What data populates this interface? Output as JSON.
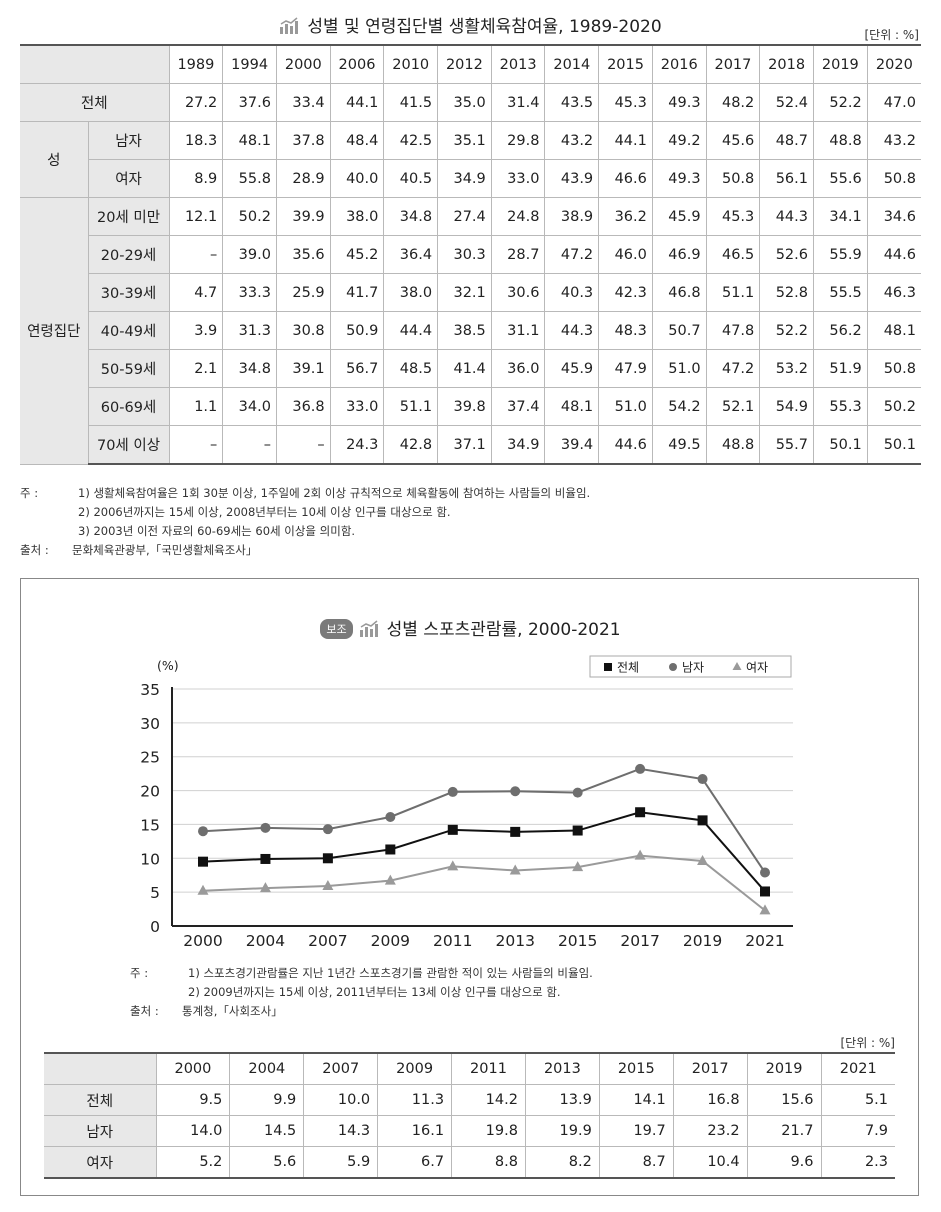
{
  "main_table": {
    "title": "성별 및 연령집단별 생활체육참여율, 1989-2020",
    "unit": "[단위 : %]",
    "years": [
      "1989",
      "1994",
      "2000",
      "2006",
      "2010",
      "2012",
      "2013",
      "2014",
      "2015",
      "2016",
      "2017",
      "2018",
      "2019",
      "2020"
    ],
    "group_sex": "성",
    "group_age": "연령집단",
    "rows": [
      {
        "label": "전체",
        "values": [
          "27.2",
          "37.6",
          "33.4",
          "44.1",
          "41.5",
          "35.0",
          "31.4",
          "43.5",
          "45.3",
          "49.3",
          "48.2",
          "52.4",
          "52.2",
          "47.0"
        ]
      },
      {
        "label": "남자",
        "values": [
          "18.3",
          "48.1",
          "37.8",
          "48.4",
          "42.5",
          "35.1",
          "29.8",
          "43.2",
          "44.1",
          "49.2",
          "45.6",
          "48.7",
          "48.8",
          "43.2"
        ]
      },
      {
        "label": "여자",
        "values": [
          "8.9",
          "55.8",
          "28.9",
          "40.0",
          "40.5",
          "34.9",
          "33.0",
          "43.9",
          "46.6",
          "49.3",
          "50.8",
          "56.1",
          "55.6",
          "50.8"
        ]
      },
      {
        "label": "20세 미만",
        "values": [
          "12.1",
          "50.2",
          "39.9",
          "38.0",
          "34.8",
          "27.4",
          "24.8",
          "38.9",
          "36.2",
          "45.9",
          "45.3",
          "44.3",
          "34.1",
          "34.6"
        ]
      },
      {
        "label": "20-29세",
        "values": [
          "–",
          "39.0",
          "35.6",
          "45.2",
          "36.4",
          "30.3",
          "28.7",
          "47.2",
          "46.0",
          "46.9",
          "46.5",
          "52.6",
          "55.9",
          "44.6"
        ]
      },
      {
        "label": "30-39세",
        "values": [
          "4.7",
          "33.3",
          "25.9",
          "41.7",
          "38.0",
          "32.1",
          "30.6",
          "40.3",
          "42.3",
          "46.8",
          "51.1",
          "52.8",
          "55.5",
          "46.3"
        ]
      },
      {
        "label": "40-49세",
        "values": [
          "3.9",
          "31.3",
          "30.8",
          "50.9",
          "44.4",
          "38.5",
          "31.1",
          "44.3",
          "48.3",
          "50.7",
          "47.8",
          "52.2",
          "56.2",
          "48.1"
        ]
      },
      {
        "label": "50-59세",
        "values": [
          "2.1",
          "34.8",
          "39.1",
          "56.7",
          "48.5",
          "41.4",
          "36.0",
          "45.9",
          "47.9",
          "51.0",
          "47.2",
          "53.2",
          "51.9",
          "50.8"
        ]
      },
      {
        "label": "60-69세",
        "values": [
          "1.1",
          "34.0",
          "36.8",
          "33.0",
          "51.1",
          "39.8",
          "37.4",
          "48.1",
          "51.0",
          "54.2",
          "52.1",
          "54.9",
          "55.3",
          "50.2"
        ]
      },
      {
        "label": "70세 이상",
        "values": [
          "–",
          "–",
          "–",
          "24.3",
          "42.8",
          "37.1",
          "34.9",
          "39.4",
          "44.6",
          "49.5",
          "48.8",
          "55.7",
          "50.1",
          "50.1"
        ]
      }
    ],
    "notes": [
      {
        "key": "주  :",
        "text": "1) 생활체육참여율은 1회 30분 이상, 1주일에 2회 이상 규칙적으로 체육활동에 참여하는 사람들의 비율임."
      },
      {
        "key": "",
        "text": "2) 2006년까지는 15세 이상, 2008년부터는 10세 이상 인구를 대상으로 함."
      },
      {
        "key": "",
        "text": "3) 2003년 이전 자료의 60-69세는 60세 이상을 의미함."
      }
    ],
    "source": {
      "key": "출처 :",
      "text": "문화체육관광부,「국민생활체육조사」"
    }
  },
  "chart": {
    "badge": "보조",
    "title": "성별 스포츠관람률, 2000-2021",
    "y_unit": "(%)",
    "notes": [
      {
        "key": "주  :",
        "text": "1) 스포츠경기관람률은 지난 1년간 스포츠경기를 관람한 적이 있는 사람들의 비율임."
      },
      {
        "key": "",
        "text": "2) 2009년까지는 15세 이상, 2011년부터는 13세 이상 인구를 대상으로 함."
      }
    ],
    "source": {
      "key": "출처 :",
      "text": "통계청,「사회조사」"
    }
  },
  "chart_data": {
    "type": "line",
    "title": "성별 스포츠관람률, 2000-2021",
    "x": [
      "2000",
      "2004",
      "2007",
      "2009",
      "2011",
      "2013",
      "2015",
      "2017",
      "2019",
      "2021"
    ],
    "ylim": [
      0,
      35
    ],
    "yticks": [
      0,
      5,
      10,
      15,
      20,
      25,
      30,
      35
    ],
    "ylabel": "(%)",
    "grid": "horizontal",
    "legend_position": "top-right",
    "series": [
      {
        "name": "전체",
        "marker": "square",
        "color": "#111111",
        "values": [
          9.5,
          9.9,
          10.0,
          11.3,
          14.2,
          13.9,
          14.1,
          16.8,
          15.6,
          5.1
        ]
      },
      {
        "name": "남자",
        "marker": "circle",
        "color": "#6e6e6e",
        "values": [
          14.0,
          14.5,
          14.3,
          16.1,
          19.8,
          19.9,
          19.7,
          23.2,
          21.7,
          7.9
        ]
      },
      {
        "name": "여자",
        "marker": "triangle",
        "color": "#9a9a9a",
        "values": [
          5.2,
          5.6,
          5.9,
          6.7,
          8.8,
          8.2,
          8.7,
          10.4,
          9.6,
          2.3
        ]
      }
    ]
  },
  "bottom_table": {
    "unit": "[단위 : %]",
    "years": [
      "2000",
      "2004",
      "2007",
      "2009",
      "2011",
      "2013",
      "2015",
      "2017",
      "2019",
      "2021"
    ],
    "rows": [
      {
        "label": "전체",
        "values": [
          "9.5",
          "9.9",
          "10.0",
          "11.3",
          "14.2",
          "13.9",
          "14.1",
          "16.8",
          "15.6",
          "5.1"
        ]
      },
      {
        "label": "남자",
        "values": [
          "14.0",
          "14.5",
          "14.3",
          "16.1",
          "19.8",
          "19.9",
          "19.7",
          "23.2",
          "21.7",
          "7.9"
        ]
      },
      {
        "label": "여자",
        "values": [
          "5.2",
          "5.6",
          "5.9",
          "6.7",
          "8.8",
          "8.2",
          "8.7",
          "10.4",
          "9.6",
          "2.3"
        ]
      }
    ]
  }
}
